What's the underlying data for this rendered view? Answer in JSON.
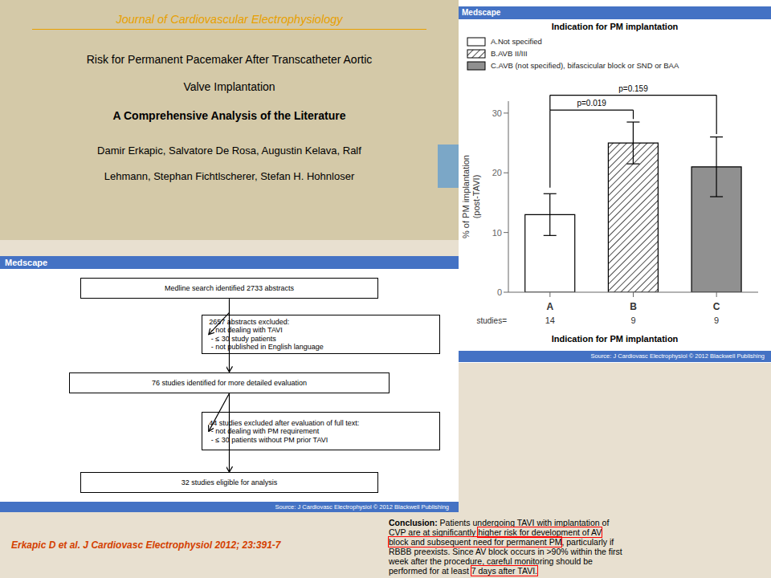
{
  "chart_data": {
    "type": "bar",
    "title": "Indication for PM implantation",
    "categories": [
      "A",
      "B",
      "C"
    ],
    "values": [
      13.0,
      25.0,
      21.0
    ],
    "errors": [
      3.5,
      3.5,
      5.0
    ],
    "colors": [
      "#ffffff",
      "#ffffff",
      "#909090"
    ],
    "studies": [
      "14",
      "9",
      "9"
    ],
    "studies_label": "studies=",
    "legend": "top",
    "legend_labels": [
      "A.Not specified",
      "B.AVB II/III",
      "C.AVB (not specified), bifascicular block or SND or BAA"
    ],
    "ylabel": "% of PM implantation\n(post-TAVI)",
    "xlabel": "Indication for PM implantation",
    "ylim": [
      0,
      32
    ],
    "yticks": [
      0,
      10,
      20,
      30
    ],
    "grid": false,
    "annotations": [
      {
        "text": "p=0.019",
        "from": "A",
        "to": "B"
      },
      {
        "text": "p=0.159",
        "from": "A",
        "to": "C"
      }
    ]
  },
  "page": {
    "colors": {
      "background": "#e8e0d0",
      "title_background": "#d4c9a8",
      "journal": "#e8a000",
      "bar": "#4472c4",
      "squares": "#7ba7c7",
      "highlight": "red",
      "citation": "#d44000"
    },
    "journal": "Journal of Cardiovascular Electrophysiology",
    "title_lines": [
      "Risk for Permanent Pacemaker After Transcatheter Aortic",
      "Valve Implantation"
    ],
    "subtitle": "A Comprehensive Analysis of the Literature",
    "authors": [
      "Damir Erkapic, Salvatore De Rosa, Augustin Kelava, Ralf",
      "Lehmann, Stephan Fichtlscherer, Stefan H. Hohnloser"
    ],
    "brand": "Medscape",
    "source": "Source: J Cardiovasc Electrophysiol © 2012 Blackwell Publishing",
    "flow_boxes": [
      "Medline search identified 2733 abstracts",
      "2657 abstracts excluded:\n - not dealing with TAVI\n - ≤ 30 study patients\n - not published in English language",
      "76 studies identified for more detailed evaluation",
      "44 studies excluded after evaluation of full text:\n - not dealing with PM requirement\n - ≤ 30 patients without PM prior TAVI",
      "32 studies eligible for analysis"
    ],
    "conclusion": [
      [
        {
          "text": "Conclusion:",
          "bold": true
        },
        {
          "text": " Patients undergoing TAVI with implantation of"
        }
      ],
      [
        {
          "text": "CVP are at significantly "
        },
        {
          "text": "higher risk for development of AV",
          "highlight": true
        }
      ],
      [
        {
          "text": "block and subsequent need for permanent PM",
          "highlight": true
        },
        {
          "text": ", particularly if"
        }
      ],
      [
        {
          "text": "RBBB preexists. Since AV block occurs in >90% within the first"
        }
      ],
      [
        {
          "text": "week after the procedure, careful monitoring should be"
        }
      ],
      [
        {
          "text": "performed for at least "
        },
        {
          "text": "7 days after TAVI.",
          "highlight": true
        }
      ]
    ],
    "citation": "Erkapic D et al. J Cardiovasc Electrophysiol 2012; 23:391-7"
  }
}
